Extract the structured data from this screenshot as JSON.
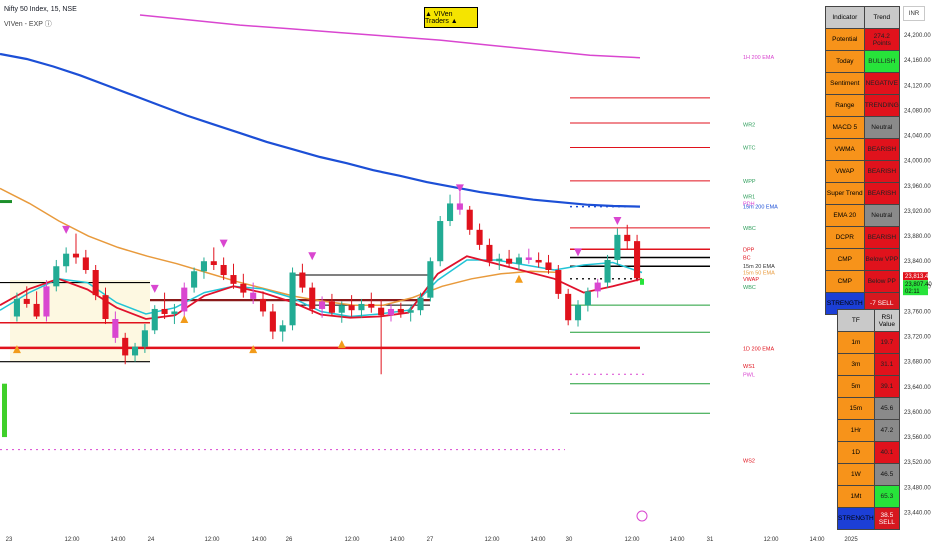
{
  "header": {
    "symbol_line": "Nifty 50 Index, 15, NSE",
    "indicator_line": "VIVen - EXP ⓘ"
  },
  "badge": {
    "label": "▲ VIVen Traders ▲"
  },
  "currency_button": {
    "label": "INR"
  },
  "indicator_table": {
    "headers": [
      "Indicator",
      "Trend"
    ],
    "rows": [
      {
        "name": "Potential",
        "value": "274.2 Points",
        "color": "red"
      },
      {
        "name": "Today",
        "value": "BULLISH",
        "color": "green"
      },
      {
        "name": "Sentiment",
        "value": "NEGATIVE",
        "color": "red"
      },
      {
        "name": "Range",
        "value": "TRENDING",
        "color": "red"
      },
      {
        "name": "MACD 5",
        "value": "Neutral",
        "color": "gray"
      },
      {
        "name": "VWMA",
        "value": "BEARISH",
        "color": "red"
      },
      {
        "name": "VWAP",
        "value": "BEARISH",
        "color": "red"
      },
      {
        "name": "Super Trend",
        "value": "BEARISH",
        "color": "red"
      },
      {
        "name": "EMA 20",
        "value": "Neutral",
        "color": "gray"
      },
      {
        "name": "DCPR",
        "value": "BEARISH",
        "color": "red"
      },
      {
        "name": "CMP",
        "value": "Below VPP",
        "color": "red"
      },
      {
        "name": "CMP",
        "value": "Below PP",
        "color": "red"
      },
      {
        "name": "STRENGTH",
        "value": "-7 SELL",
        "color": "blue-red"
      }
    ]
  },
  "rsi_table": {
    "headers": [
      "TF",
      "RSI Value"
    ],
    "rows": [
      {
        "tf": "1m",
        "value": "19.7",
        "color": "red"
      },
      {
        "tf": "3m",
        "value": "31.1",
        "color": "red"
      },
      {
        "tf": "5m",
        "value": "39.1",
        "color": "red"
      },
      {
        "tf": "15m",
        "value": "45.6",
        "color": "gray"
      },
      {
        "tf": "1Hr",
        "value": "47.2",
        "color": "gray"
      },
      {
        "tf": "1D",
        "value": "40.1",
        "color": "red"
      },
      {
        "tf": "1W",
        "value": "46.5",
        "color": "gray"
      },
      {
        "tf": "1Mt",
        "value": "65.3",
        "color": "green"
      },
      {
        "tf": "STRENGTH",
        "value": "38.5 SELL",
        "color": "blue-red"
      }
    ]
  },
  "price_axis": {
    "ticks": [
      "24,200.00",
      "24,160.00",
      "24,120.00",
      "24,080.00",
      "24,040.00",
      "24,000.00",
      "23,960.00",
      "23,920.00",
      "23,880.00",
      "23,840.00",
      "23,800.00",
      "23,760.00",
      "23,720.00",
      "23,680.00",
      "23,640.00",
      "23,600.00",
      "23,560.00",
      "23,520.00",
      "23,480.00",
      "23,440.00"
    ],
    "current_price": "23,813.40",
    "price_label_2": "23,807.40",
    "countdown": "02:11"
  },
  "time_axis": {
    "ticks": [
      "23",
      "12:00",
      "14:00",
      "24",
      "12:00",
      "14:00",
      "26",
      "12:00",
      "14:00",
      "27",
      "12:00",
      "14:00",
      "30",
      "12:00",
      "14:00",
      "31",
      "12:00",
      "14:00",
      "2025"
    ]
  },
  "level_labels": [
    {
      "text": "1H 200 EMA",
      "price": 24165,
      "color": "#d946d0"
    },
    {
      "text": "WR2",
      "price": 24058,
      "color": "#2e9e5b"
    },
    {
      "text": "WTC",
      "price": 24021,
      "color": "#2e9e5b"
    },
    {
      "text": "WPP",
      "price": 23968,
      "color": "#2e9e5b"
    },
    {
      "text": "WR1",
      "price": 23943,
      "color": "#2e9e5b"
    },
    {
      "text": "PDH",
      "price": 23932,
      "color": "#d946d0"
    },
    {
      "text": "15m 200 EMA",
      "price": 23927,
      "color": "#1c4fd6"
    },
    {
      "text": "WBC",
      "price": 23893,
      "color": "#2e9e5b"
    },
    {
      "text": "DPP",
      "price": 23859,
      "color": "#e0121c"
    },
    {
      "text": "BC",
      "price": 23846,
      "color": "#e0121c"
    },
    {
      "text": "15m 20 EMA",
      "price": 23832,
      "color": "#333333"
    },
    {
      "text": "15m 50 EMA",
      "price": 23822,
      "color": "#e89a3c"
    },
    {
      "text": "VWAP",
      "price": 23812,
      "color": "#e0121c"
    },
    {
      "text": "WBC",
      "price": 23799,
      "color": "#2e9e5b"
    },
    {
      "text": "1D 200 EMA",
      "price": 23701,
      "color": "#e0121c"
    },
    {
      "text": "WS1",
      "price": 23673,
      "color": "#e0121c"
    },
    {
      "text": "PWL",
      "price": 23660,
      "color": "#d946d0"
    },
    {
      "text": "WS2",
      "price": 23523,
      "color": "#e0121c"
    }
  ],
  "colors": {
    "bull_candle": "#22ab94",
    "bear_candle": "#e0121c",
    "neutral_candle": "#d946d0",
    "ema200_15m": "#1c4fd6",
    "ema50": "#e89a3c",
    "ema20": "#22c4d6",
    "ema_hourly": "#d946d0",
    "vwap": "#e0122c"
  },
  "chart_data": {
    "type": "candlestick",
    "title": "Nifty 50 Index, 15, NSE",
    "ylim": [
      23420,
      24240
    ],
    "x_ticks": [
      "23",
      "12:00",
      "14:00",
      "24",
      "12:00",
      "14:00",
      "26",
      "12:00",
      "14:00",
      "27",
      "12:00",
      "14:00",
      "30",
      "12:00",
      "14:00",
      "31",
      "12:00",
      "14:00",
      "2025"
    ],
    "series": [
      {
        "name": "15m 200 EMA",
        "kind": "line",
        "values": [
          24170,
          24162,
          24150,
          24136,
          24120,
          24104,
          24088,
          24072,
          24058,
          24044,
          24030,
          24018,
          24006,
          23996,
          23985,
          23976,
          23966,
          23958,
          23950,
          23944,
          23938,
          23934,
          23930,
          23928,
          23927
        ]
      },
      {
        "name": "1H 200 EMA",
        "kind": "line",
        "values": [
          24232,
          24224,
          24216,
          24210,
          24204,
          24198,
          24192,
          24184,
          24176,
          24168,
          24164
        ]
      },
      {
        "name": "15m 50 EMA",
        "kind": "line",
        "values": [
          23956,
          23932,
          23904,
          23880,
          23862,
          23848,
          23836,
          23822,
          23808,
          23796,
          23784,
          23776,
          23770,
          23770,
          23782,
          23800,
          23812,
          23820,
          23824,
          23822
        ]
      },
      {
        "name": "15m 20 EMA",
        "kind": "line",
        "values": [
          23762,
          23790,
          23812,
          23806,
          23774,
          23756,
          23766,
          23790,
          23800,
          23796,
          23782,
          23760,
          23752,
          23756,
          23762,
          23810,
          23842,
          23842,
          23834,
          23826,
          23834,
          23838,
          23822
        ]
      },
      {
        "name": "VWAP",
        "kind": "line",
        "values": [
          23770,
          23796,
          23812,
          23795,
          23766,
          23748,
          23754,
          23785,
          23800,
          23790,
          23775,
          23755,
          23750,
          23752,
          23758,
          23820,
          23848,
          23836,
          23824,
          23812,
          23790,
          23800,
          23812
        ]
      }
    ],
    "ohlc": [
      {
        "o": 23752,
        "h": 23790,
        "l": 23744,
        "c": 23780
      },
      {
        "o": 23780,
        "h": 23800,
        "l": 23766,
        "c": 23772
      },
      {
        "o": 23772,
        "h": 23792,
        "l": 23748,
        "c": 23752
      },
      {
        "o": 23752,
        "h": 23810,
        "l": 23744,
        "c": 23800
      },
      {
        "o": 23800,
        "h": 23842,
        "l": 23792,
        "c": 23832
      },
      {
        "o": 23832,
        "h": 23862,
        "l": 23822,
        "c": 23852
      },
      {
        "o": 23852,
        "h": 23884,
        "l": 23836,
        "c": 23846
      },
      {
        "o": 23846,
        "h": 23858,
        "l": 23820,
        "c": 23826
      },
      {
        "o": 23826,
        "h": 23834,
        "l": 23778,
        "c": 23786
      },
      {
        "o": 23786,
        "h": 23798,
        "l": 23740,
        "c": 23748
      },
      {
        "o": 23748,
        "h": 23760,
        "l": 23710,
        "c": 23718
      },
      {
        "o": 23718,
        "h": 23726,
        "l": 23676,
        "c": 23690
      },
      {
        "o": 23690,
        "h": 23710,
        "l": 23680,
        "c": 23704
      },
      {
        "o": 23704,
        "h": 23740,
        "l": 23694,
        "c": 23730
      },
      {
        "o": 23730,
        "h": 23770,
        "l": 23724,
        "c": 23764
      },
      {
        "o": 23764,
        "h": 23790,
        "l": 23748,
        "c": 23756
      },
      {
        "o": 23756,
        "h": 23772,
        "l": 23740,
        "c": 23760
      },
      {
        "o": 23760,
        "h": 23806,
        "l": 23752,
        "c": 23798
      },
      {
        "o": 23798,
        "h": 23830,
        "l": 23790,
        "c": 23824
      },
      {
        "o": 23824,
        "h": 23846,
        "l": 23812,
        "c": 23840
      },
      {
        "o": 23840,
        "h": 23862,
        "l": 23826,
        "c": 23834
      },
      {
        "o": 23834,
        "h": 23846,
        "l": 23810,
        "c": 23818
      },
      {
        "o": 23818,
        "h": 23836,
        "l": 23796,
        "c": 23804
      },
      {
        "o": 23804,
        "h": 23820,
        "l": 23782,
        "c": 23790
      },
      {
        "o": 23790,
        "h": 23806,
        "l": 23772,
        "c": 23780
      },
      {
        "o": 23780,
        "h": 23792,
        "l": 23752,
        "c": 23760
      },
      {
        "o": 23760,
        "h": 23772,
        "l": 23716,
        "c": 23728
      },
      {
        "o": 23728,
        "h": 23746,
        "l": 23712,
        "c": 23738
      },
      {
        "o": 23738,
        "h": 23830,
        "l": 23730,
        "c": 23822
      },
      {
        "o": 23822,
        "h": 23836,
        "l": 23790,
        "c": 23798
      },
      {
        "o": 23798,
        "h": 23806,
        "l": 23756,
        "c": 23764
      },
      {
        "o": 23764,
        "h": 23784,
        "l": 23750,
        "c": 23776
      },
      {
        "o": 23776,
        "h": 23788,
        "l": 23752,
        "c": 23758
      },
      {
        "o": 23758,
        "h": 23776,
        "l": 23742,
        "c": 23770
      },
      {
        "o": 23770,
        "h": 23786,
        "l": 23752,
        "c": 23762
      },
      {
        "o": 23762,
        "h": 23780,
        "l": 23750,
        "c": 23772
      },
      {
        "o": 23772,
        "h": 23790,
        "l": 23758,
        "c": 23766
      },
      {
        "o": 23766,
        "h": 23778,
        "l": 23660,
        "c": 23754
      },
      {
        "o": 23754,
        "h": 23772,
        "l": 23744,
        "c": 23764
      },
      {
        "o": 23764,
        "h": 23774,
        "l": 23750,
        "c": 23758
      },
      {
        "o": 23758,
        "h": 23768,
        "l": 23744,
        "c": 23762
      },
      {
        "o": 23762,
        "h": 23790,
        "l": 23754,
        "c": 23782
      },
      {
        "o": 23782,
        "h": 23846,
        "l": 23776,
        "c": 23840
      },
      {
        "o": 23840,
        "h": 23912,
        "l": 23832,
        "c": 23904
      },
      {
        "o": 23904,
        "h": 23946,
        "l": 23896,
        "c": 23932
      },
      {
        "o": 23932,
        "h": 23950,
        "l": 23914,
        "c": 23922
      },
      {
        "o": 23922,
        "h": 23928,
        "l": 23882,
        "c": 23890
      },
      {
        "o": 23890,
        "h": 23900,
        "l": 23858,
        "c": 23866
      },
      {
        "o": 23866,
        "h": 23876,
        "l": 23832,
        "c": 23840
      },
      {
        "o": 23840,
        "h": 23852,
        "l": 23826,
        "c": 23844
      },
      {
        "o": 23844,
        "h": 23858,
        "l": 23830,
        "c": 23836
      },
      {
        "o": 23836,
        "h": 23852,
        "l": 23826,
        "c": 23846
      },
      {
        "o": 23846,
        "h": 23860,
        "l": 23836,
        "c": 23842
      },
      {
        "o": 23842,
        "h": 23854,
        "l": 23830,
        "c": 23838
      },
      {
        "o": 23838,
        "h": 23850,
        "l": 23820,
        "c": 23826
      },
      {
        "o": 23826,
        "h": 23834,
        "l": 23780,
        "c": 23788
      },
      {
        "o": 23788,
        "h": 23796,
        "l": 23738,
        "c": 23746
      },
      {
        "o": 23746,
        "h": 23778,
        "l": 23736,
        "c": 23770
      },
      {
        "o": 23770,
        "h": 23798,
        "l": 23760,
        "c": 23792
      },
      {
        "o": 23792,
        "h": 23812,
        "l": 23782,
        "c": 23806
      },
      {
        "o": 23806,
        "h": 23850,
        "l": 23798,
        "c": 23842
      },
      {
        "o": 23842,
        "h": 23892,
        "l": 23834,
        "c": 23882
      },
      {
        "o": 23882,
        "h": 23898,
        "l": 23860,
        "c": 23872
      },
      {
        "o": 23872,
        "h": 23882,
        "l": 23808,
        "c": 23813
      }
    ],
    "signals": [
      {
        "type": "sell",
        "bar": 5,
        "price": 23890
      },
      {
        "type": "sell",
        "bar": 14,
        "price": 23796
      },
      {
        "type": "sell",
        "bar": 21,
        "price": 23868
      },
      {
        "type": "sell",
        "bar": 30,
        "price": 23848
      },
      {
        "type": "sell",
        "bar": 45,
        "price": 23956
      },
      {
        "type": "sell",
        "bar": 61,
        "price": 23904
      },
      {
        "type": "sell",
        "bar": 57,
        "price": 23854
      },
      {
        "type": "buy",
        "bar": 0,
        "price": 23700
      },
      {
        "type": "buy",
        "bar": 17,
        "price": 23748
      },
      {
        "type": "buy",
        "bar": 24,
        "price": 23700
      },
      {
        "type": "buy",
        "bar": 33,
        "price": 23708
      },
      {
        "type": "buy",
        "bar": 51,
        "price": 23812
      }
    ]
  }
}
